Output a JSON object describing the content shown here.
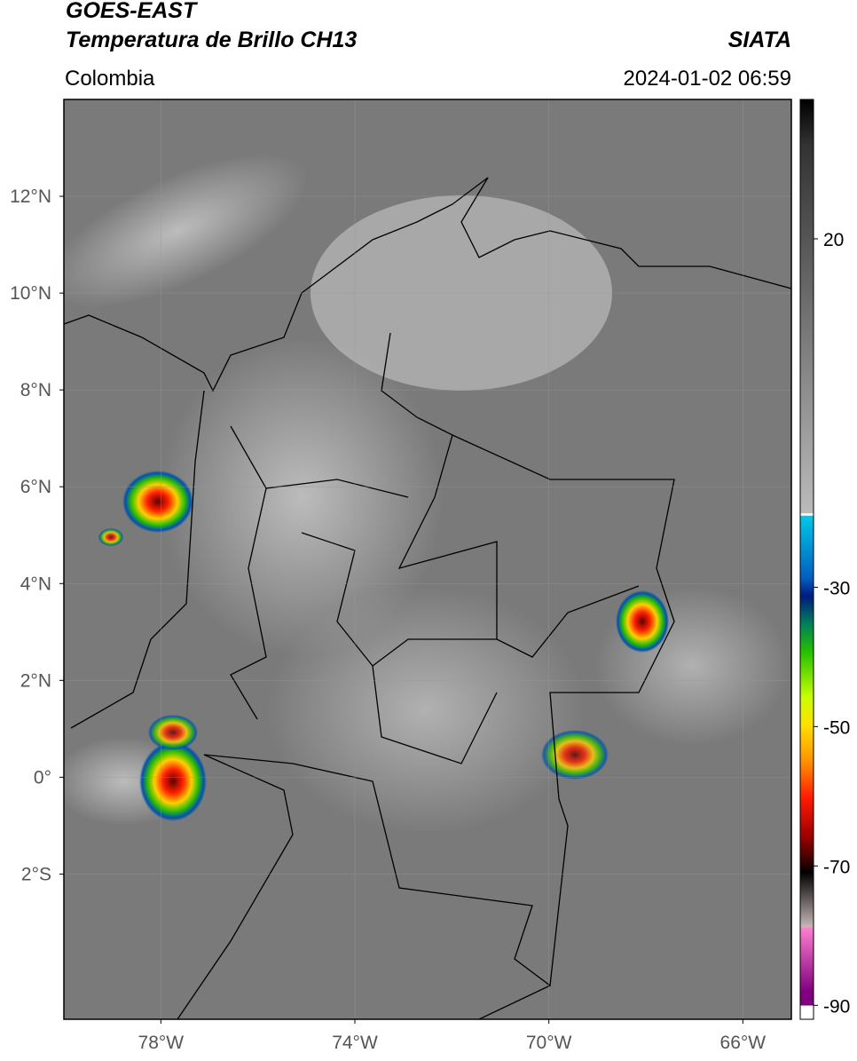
{
  "header": {
    "title": "GOES-EAST",
    "subtitle": "Temperatura de Brillo CH13",
    "source": "SIATA",
    "region": "Colombia",
    "datetime": "2024-01-02 06:59"
  },
  "map": {
    "lonlim": [
      -80,
      -65
    ],
    "latlim": [
      -5,
      14
    ],
    "lon_ticks": [
      {
        "value": -78,
        "label": "78°W"
      },
      {
        "value": -74,
        "label": "74°W"
      },
      {
        "value": -70,
        "label": "70°W"
      },
      {
        "value": -66,
        "label": "66°W"
      }
    ],
    "lat_ticks": [
      {
        "value": 12,
        "label": "12°N"
      },
      {
        "value": 10,
        "label": "10°N"
      },
      {
        "value": 8,
        "label": "8°N"
      },
      {
        "value": 6,
        "label": "6°N"
      },
      {
        "value": 4,
        "label": "4°N"
      },
      {
        "value": 2,
        "label": "2°N"
      },
      {
        "value": 0,
        "label": "0°"
      },
      {
        "value": -2,
        "label": "2°S"
      }
    ]
  },
  "colorbar": {
    "lim": [
      -92,
      40
    ],
    "ticks": [
      20,
      -30,
      -50,
      -70,
      -90
    ]
  }
}
